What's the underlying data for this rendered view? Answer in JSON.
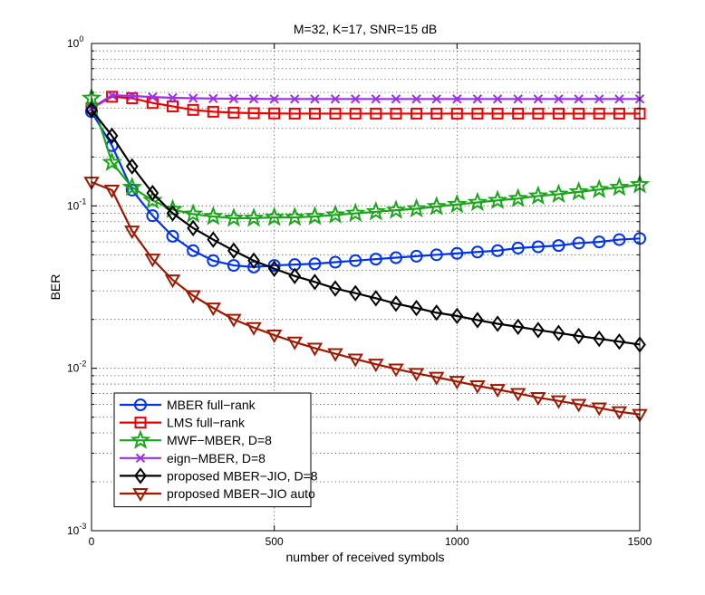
{
  "chart_data": {
    "type": "line",
    "title": "M=32, K=17, SNR=15 dB",
    "xlabel": "number of received symbols",
    "ylabel": "BER",
    "xlim": [
      0,
      1500
    ],
    "ylim": [
      0.001,
      1
    ],
    "yscale": "log",
    "xticks": [
      0,
      500,
      1000,
      1500
    ],
    "yticks": [
      {
        "value": 1,
        "base": "10",
        "exp": "0"
      },
      {
        "value": 0.1,
        "base": "10",
        "exp": "-1"
      },
      {
        "value": 0.01,
        "base": "10",
        "exp": "-2"
      },
      {
        "value": 0.001,
        "base": "10",
        "exp": "-3"
      }
    ],
    "grid": true,
    "legend_position": "bottom-left",
    "x": [
      0,
      56,
      111,
      167,
      222,
      278,
      333,
      389,
      444,
      500,
      556,
      611,
      667,
      722,
      778,
      833,
      889,
      944,
      1000,
      1056,
      1111,
      1167,
      1222,
      1278,
      1333,
      1389,
      1444,
      1500
    ],
    "series": [
      {
        "name": "MBER full−rank",
        "color": "#0033ee",
        "marker": "circle",
        "values": [
          0.38,
          0.235,
          0.125,
          0.087,
          0.065,
          0.053,
          0.046,
          0.043,
          0.042,
          0.043,
          0.0435,
          0.044,
          0.045,
          0.046,
          0.047,
          0.048,
          0.049,
          0.05,
          0.051,
          0.052,
          0.053,
          0.055,
          0.056,
          0.057,
          0.059,
          0.06,
          0.062,
          0.063
        ]
      },
      {
        "name": "LMS full−rank",
        "color": "#ee0000",
        "marker": "square",
        "values": [
          0.4,
          0.47,
          0.46,
          0.43,
          0.41,
          0.39,
          0.38,
          0.375,
          0.372,
          0.371,
          0.37,
          0.37,
          0.37,
          0.37,
          0.37,
          0.37,
          0.37,
          0.37,
          0.37,
          0.37,
          0.37,
          0.37,
          0.37,
          0.37,
          0.37,
          0.37,
          0.37,
          0.37
        ]
      },
      {
        "name": "MWF−MBER, D=8",
        "color": "#19a619",
        "marker": "star",
        "values": [
          0.46,
          0.185,
          0.13,
          0.108,
          0.095,
          0.089,
          0.086,
          0.084,
          0.084,
          0.085,
          0.085,
          0.086,
          0.088,
          0.09,
          0.092,
          0.094,
          0.096,
          0.099,
          0.102,
          0.105,
          0.108,
          0.111,
          0.115,
          0.118,
          0.122,
          0.126,
          0.13,
          0.135
        ]
      },
      {
        "name": "eign−MBER, D=8",
        "color": "#9a30e8",
        "marker": "x",
        "values": [
          0.4,
          0.48,
          0.475,
          0.468,
          0.463,
          0.46,
          0.458,
          0.457,
          0.456,
          0.455,
          0.455,
          0.455,
          0.455,
          0.455,
          0.455,
          0.455,
          0.455,
          0.455,
          0.455,
          0.455,
          0.455,
          0.455,
          0.455,
          0.455,
          0.455,
          0.455,
          0.455,
          0.455
        ]
      },
      {
        "name": "proposed MBER−JIO, D=8",
        "color": "#000000",
        "marker": "diamond",
        "values": [
          0.39,
          0.27,
          0.175,
          0.12,
          0.09,
          0.073,
          0.062,
          0.053,
          0.046,
          0.041,
          0.037,
          0.034,
          0.031,
          0.029,
          0.027,
          0.025,
          0.0235,
          0.022,
          0.021,
          0.0198,
          0.0188,
          0.018,
          0.0172,
          0.0165,
          0.0158,
          0.0152,
          0.0146,
          0.014
        ]
      },
      {
        "name": "proposed MBER−JIO auto",
        "color": "#a01800",
        "marker": "triangle-down",
        "values": [
          0.14,
          0.125,
          0.07,
          0.047,
          0.035,
          0.028,
          0.0235,
          0.02,
          0.0178,
          0.016,
          0.0145,
          0.0133,
          0.0123,
          0.0114,
          0.0106,
          0.0099,
          0.0093,
          0.0088,
          0.0083,
          0.0078,
          0.0074,
          0.007,
          0.0066,
          0.0063,
          0.006,
          0.0057,
          0.0054,
          0.0052
        ]
      }
    ]
  }
}
